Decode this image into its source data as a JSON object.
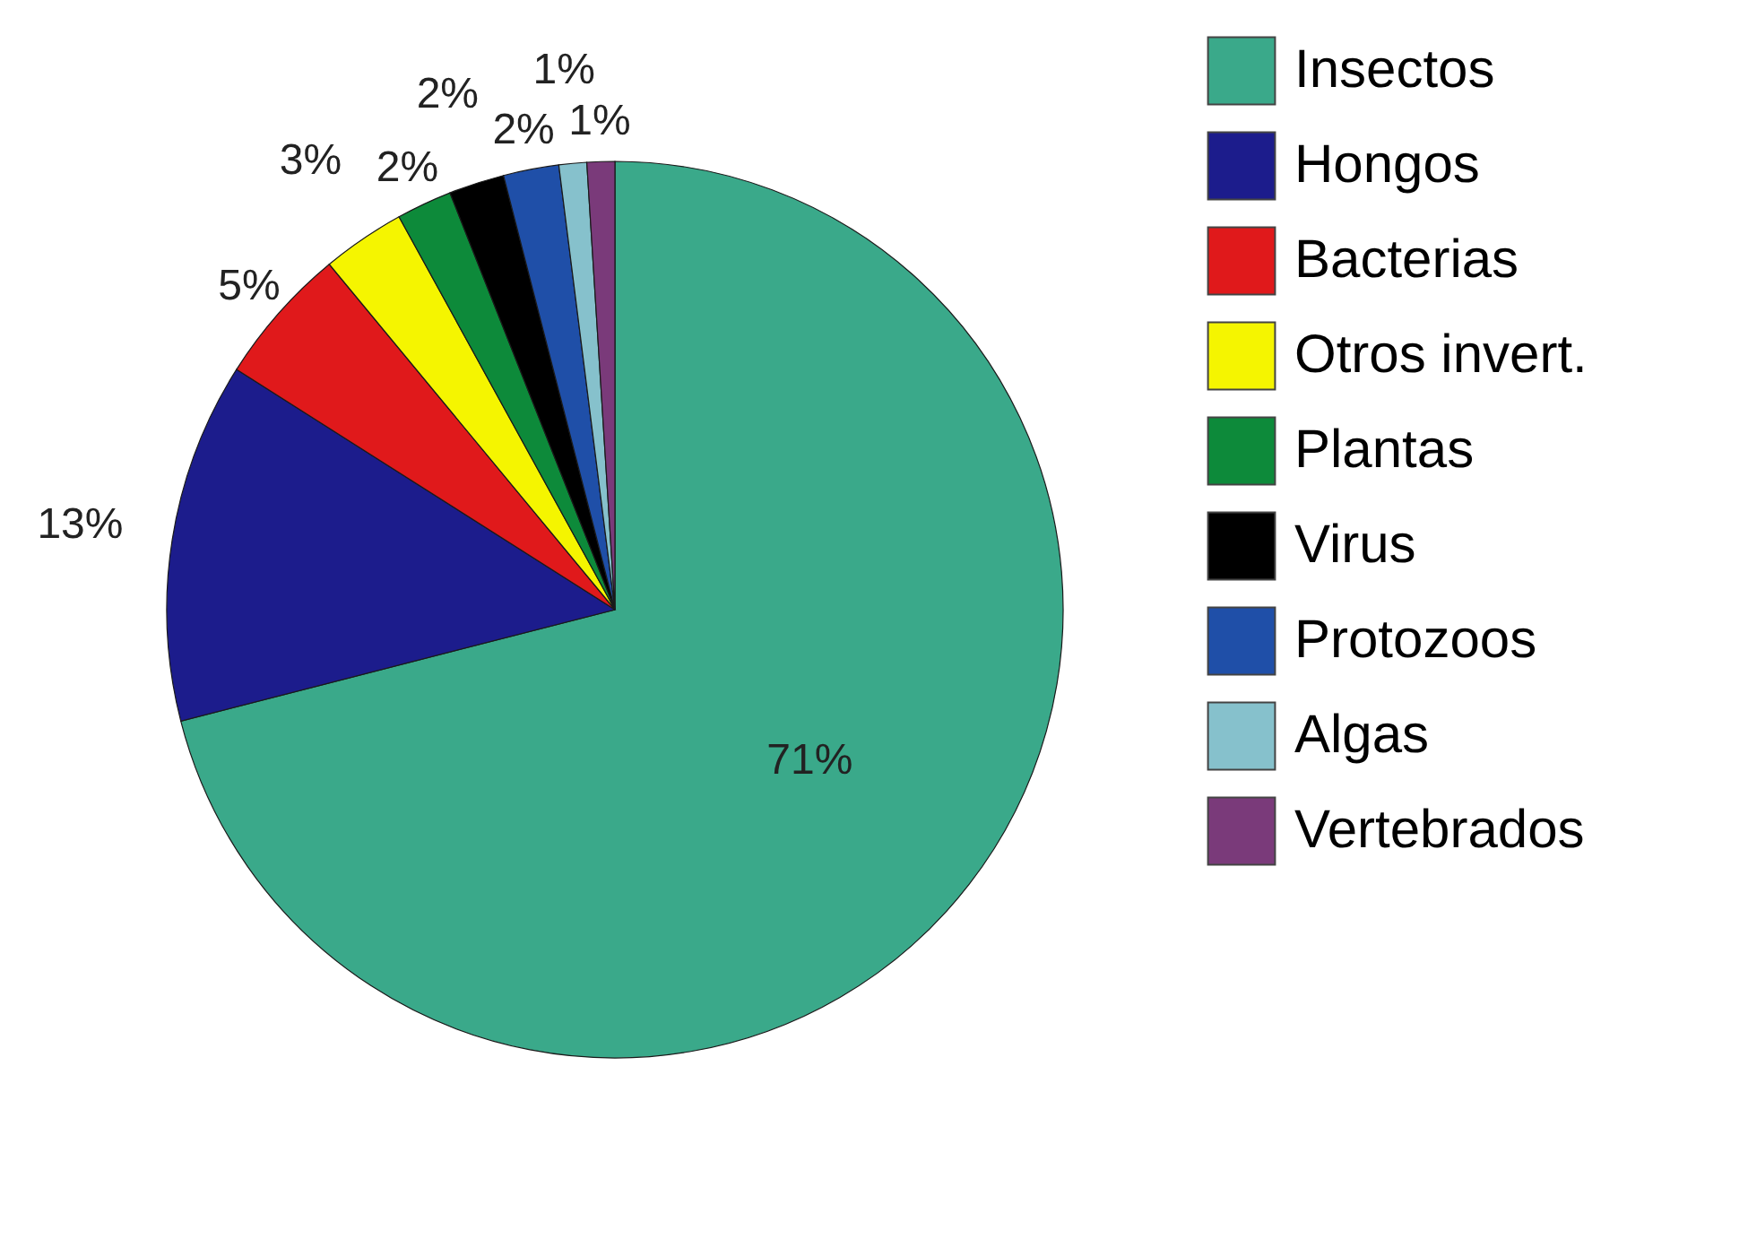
{
  "chart_data": {
    "type": "pie",
    "categories": [
      "Insectos",
      "Hongos",
      "Bacterias",
      "Otros invert.",
      "Plantas",
      "Virus",
      "Protozoos",
      "Algas",
      "Vertebrados"
    ],
    "values": [
      71,
      13,
      5,
      3,
      2,
      2,
      2,
      1,
      1
    ],
    "colors": [
      "#3aa98a",
      "#1c1c8c",
      "#e0191b",
      "#f5f500",
      "#0d8a3a",
      "#000000",
      "#1f4fa8",
      "#86c1cc",
      "#7a3a7a"
    ],
    "value_labels": [
      "71%",
      "13%",
      "5%",
      "3%",
      "2%",
      "2%",
      "2%",
      "1%",
      "1%"
    ],
    "legend": "right"
  }
}
